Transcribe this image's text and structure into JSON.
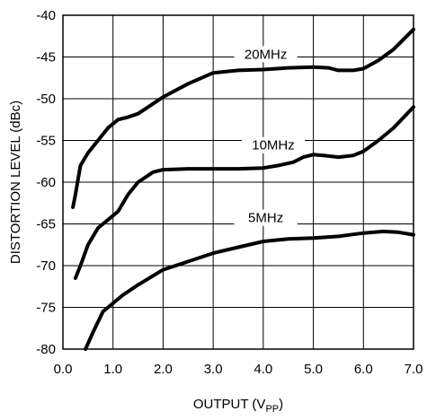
{
  "chart_data": {
    "type": "line",
    "title": "",
    "xlabel": "OUTPUT (V",
    "xlabel_sub": "PP",
    "xlabel_close": ")",
    "ylabel": "DISTORTION LEVEL (dBc)",
    "xlim": [
      0,
      7
    ],
    "ylim": [
      -80,
      -40
    ],
    "x_ticks": [
      0,
      1,
      2,
      3,
      4,
      5,
      6,
      7
    ],
    "x_tick_labels": [
      "0.0",
      "1.0",
      "2.0",
      "3.0",
      "4.0",
      "5.0",
      "6.0",
      "7.0"
    ],
    "y_ticks": [
      -40,
      -45,
      -50,
      -55,
      -60,
      -65,
      -70,
      -75,
      -80
    ],
    "y_tick_labels": [
      "-40",
      "-45",
      "-50",
      "-55",
      "-60",
      "-65",
      "-70",
      "-75",
      "-80"
    ],
    "grid": true,
    "series": [
      {
        "name": "20MHz",
        "label_at": [
          4.05,
          -45.2
        ],
        "points": [
          [
            0.2,
            -63
          ],
          [
            0.25,
            -61.5
          ],
          [
            0.35,
            -58
          ],
          [
            0.5,
            -56.5
          ],
          [
            0.7,
            -55
          ],
          [
            0.9,
            -53.5
          ],
          [
            1.1,
            -52.5
          ],
          [
            1.3,
            -52.2
          ],
          [
            1.5,
            -51.8
          ],
          [
            1.7,
            -51
          ],
          [
            2.0,
            -49.8
          ],
          [
            2.5,
            -48.2
          ],
          [
            3.0,
            -46.9
          ],
          [
            3.5,
            -46.6
          ],
          [
            4.0,
            -46.5
          ],
          [
            4.5,
            -46.3
          ],
          [
            5.0,
            -46.2
          ],
          [
            5.3,
            -46.3
          ],
          [
            5.5,
            -46.6
          ],
          [
            5.8,
            -46.6
          ],
          [
            6.0,
            -46.4
          ],
          [
            6.3,
            -45.4
          ],
          [
            6.6,
            -44.1
          ],
          [
            7.0,
            -41.7
          ]
        ]
      },
      {
        "name": "10MHz",
        "label_at": [
          4.2,
          -56.1
        ],
        "points": [
          [
            0.25,
            -71.5
          ],
          [
            0.35,
            -70
          ],
          [
            0.5,
            -67.5
          ],
          [
            0.7,
            -65.5
          ],
          [
            0.9,
            -64.5
          ],
          [
            1.1,
            -63.5
          ],
          [
            1.3,
            -61.5
          ],
          [
            1.5,
            -60
          ],
          [
            1.8,
            -58.8
          ],
          [
            2.0,
            -58.5
          ],
          [
            2.5,
            -58.4
          ],
          [
            3.0,
            -58.4
          ],
          [
            3.5,
            -58.4
          ],
          [
            4.0,
            -58.3
          ],
          [
            4.3,
            -58
          ],
          [
            4.6,
            -57.6
          ],
          [
            4.8,
            -57
          ],
          [
            5.0,
            -56.7
          ],
          [
            5.2,
            -56.8
          ],
          [
            5.5,
            -57
          ],
          [
            5.8,
            -56.8
          ],
          [
            6.0,
            -56.3
          ],
          [
            6.3,
            -55
          ],
          [
            6.6,
            -53.5
          ],
          [
            7.0,
            -51
          ]
        ]
      },
      {
        "name": "5MHz",
        "label_at": [
          4.05,
          -64.8
        ],
        "points": [
          [
            0.45,
            -80
          ],
          [
            0.6,
            -78
          ],
          [
            0.8,
            -75.5
          ],
          [
            1.0,
            -74.5
          ],
          [
            1.2,
            -73.5
          ],
          [
            1.5,
            -72.3
          ],
          [
            2.0,
            -70.5
          ],
          [
            2.5,
            -69.5
          ],
          [
            3.0,
            -68.5
          ],
          [
            3.5,
            -67.8
          ],
          [
            4.0,
            -67.1
          ],
          [
            4.5,
            -66.8
          ],
          [
            5.0,
            -66.7
          ],
          [
            5.5,
            -66.5
          ],
          [
            6.0,
            -66.1
          ],
          [
            6.4,
            -65.9
          ],
          [
            6.7,
            -66
          ],
          [
            7.0,
            -66.3
          ]
        ]
      }
    ]
  }
}
